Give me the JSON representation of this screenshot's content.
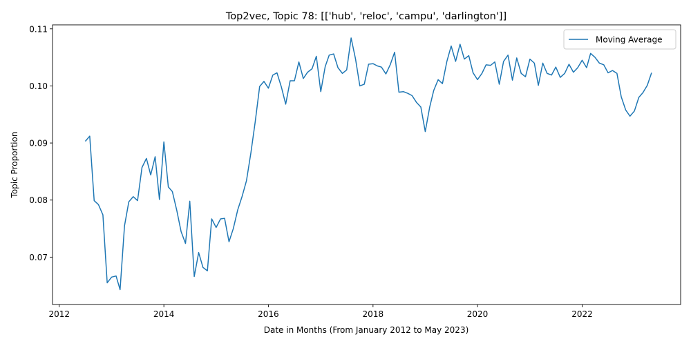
{
  "chart_data": {
    "type": "line",
    "title": "Top2vec, Topic 78: [['hub', 'reloc', 'campu', 'darlington']]",
    "xlabel": "Date in Months (From January 2012 to May 2023)",
    "ylabel": "Topic Proportion",
    "xlim": [
      "2011-11-15",
      "2023-11-20"
    ],
    "ylim": [
      0.0617,
      0.1107
    ],
    "x_ticks": [
      {
        "value": "2012-01-01",
        "label": "2012"
      },
      {
        "value": "2014-01-01",
        "label": "2014"
      },
      {
        "value": "2016-01-01",
        "label": "2016"
      },
      {
        "value": "2018-01-01",
        "label": "2018"
      },
      {
        "value": "2020-01-01",
        "label": "2020"
      },
      {
        "value": "2022-01-01",
        "label": "2022"
      }
    ],
    "y_ticks": [
      {
        "value": 0.07,
        "label": "0.07"
      },
      {
        "value": 0.08,
        "label": "0.08"
      },
      {
        "value": 0.09,
        "label": "0.09"
      },
      {
        "value": 0.1,
        "label": "0.10"
      },
      {
        "value": 0.11,
        "label": "0.11"
      }
    ],
    "grid": false,
    "legend_position": "top-right",
    "series": [
      {
        "name": "Moving Average",
        "color": "#1f77b4",
        "x": [
          "2012-07",
          "2012-08",
          "2012-09",
          "2012-10",
          "2012-11",
          "2012-12",
          "2013-01",
          "2013-02",
          "2013-03",
          "2013-04",
          "2013-05",
          "2013-06",
          "2013-07",
          "2013-08",
          "2013-09",
          "2013-10",
          "2013-11",
          "2013-12",
          "2014-01",
          "2014-02",
          "2014-03",
          "2014-04",
          "2014-05",
          "2014-06",
          "2014-07",
          "2014-08",
          "2014-09",
          "2014-10",
          "2014-11",
          "2014-12",
          "2015-01",
          "2015-02",
          "2015-03",
          "2015-04",
          "2015-05",
          "2015-06",
          "2015-07",
          "2015-08",
          "2015-09",
          "2015-10",
          "2015-11",
          "2015-12",
          "2016-01",
          "2016-02",
          "2016-03",
          "2016-04",
          "2016-05",
          "2016-06",
          "2016-07",
          "2016-08",
          "2016-09",
          "2016-10",
          "2016-11",
          "2016-12",
          "2017-01",
          "2017-02",
          "2017-03",
          "2017-04",
          "2017-05",
          "2017-06",
          "2017-07",
          "2017-08",
          "2017-09",
          "2017-10",
          "2017-11",
          "2017-12",
          "2018-01",
          "2018-02",
          "2018-03",
          "2018-04",
          "2018-05",
          "2018-06",
          "2018-07",
          "2018-08",
          "2018-09",
          "2018-10",
          "2018-11",
          "2018-12",
          "2019-01",
          "2019-02",
          "2019-03",
          "2019-04",
          "2019-05",
          "2019-06",
          "2019-07",
          "2019-08",
          "2019-09",
          "2019-10",
          "2019-11",
          "2019-12",
          "2020-01",
          "2020-02",
          "2020-03",
          "2020-04",
          "2020-05",
          "2020-06",
          "2020-07",
          "2020-08",
          "2020-09",
          "2020-10",
          "2020-11",
          "2020-12",
          "2021-01",
          "2021-02",
          "2021-03",
          "2021-04",
          "2021-05",
          "2021-06",
          "2021-07",
          "2021-08",
          "2021-09",
          "2021-10",
          "2021-11",
          "2021-12",
          "2022-01",
          "2022-02",
          "2022-03",
          "2022-04",
          "2022-05",
          "2022-06",
          "2022-07",
          "2022-08",
          "2022-09",
          "2022-10",
          "2022-11",
          "2022-12",
          "2023-01",
          "2023-02",
          "2023-03",
          "2023-04",
          "2023-05"
        ],
        "values": [
          0.0903,
          0.0912,
          0.0799,
          0.0792,
          0.0774,
          0.0655,
          0.0665,
          0.0667,
          0.0643,
          0.0755,
          0.0797,
          0.0806,
          0.0799,
          0.0857,
          0.0873,
          0.0844,
          0.0876,
          0.0801,
          0.0902,
          0.0823,
          0.0815,
          0.0782,
          0.0745,
          0.0724,
          0.0798,
          0.0666,
          0.0708,
          0.0682,
          0.0676,
          0.0767,
          0.0752,
          0.0767,
          0.0768,
          0.0727,
          0.075,
          0.0783,
          0.0806,
          0.0834,
          0.0883,
          0.0937,
          0.0999,
          0.1008,
          0.0996,
          0.1019,
          0.1023,
          0.0998,
          0.0968,
          0.1009,
          0.1009,
          0.1042,
          0.1013,
          0.1024,
          0.103,
          0.1052,
          0.099,
          0.1034,
          0.1054,
          0.1056,
          0.1032,
          0.1022,
          0.1028,
          0.1084,
          0.1047,
          0.1,
          0.1003,
          0.1038,
          0.1039,
          0.1035,
          0.1033,
          0.1021,
          0.1037,
          0.1059,
          0.0989,
          0.099,
          0.0987,
          0.0983,
          0.0971,
          0.0963,
          0.092,
          0.0963,
          0.0992,
          0.1011,
          0.1004,
          0.1043,
          0.107,
          0.1043,
          0.1073,
          0.1047,
          0.1053,
          0.1023,
          0.1011,
          0.1022,
          0.1037,
          0.1036,
          0.1042,
          0.1003,
          0.1043,
          0.1054,
          0.101,
          0.1049,
          0.1022,
          0.1016,
          0.1047,
          0.104,
          0.1001,
          0.104,
          0.1022,
          0.1019,
          0.1033,
          0.1015,
          0.1022,
          0.1038,
          0.1024,
          0.1032,
          0.1045,
          0.1032,
          0.1057,
          0.105,
          0.104,
          0.1037,
          0.1023,
          0.1027,
          0.1022,
          0.0981,
          0.0958,
          0.0947,
          0.0956,
          0.098,
          0.0988,
          0.1001,
          0.1023
        ]
      }
    ]
  }
}
